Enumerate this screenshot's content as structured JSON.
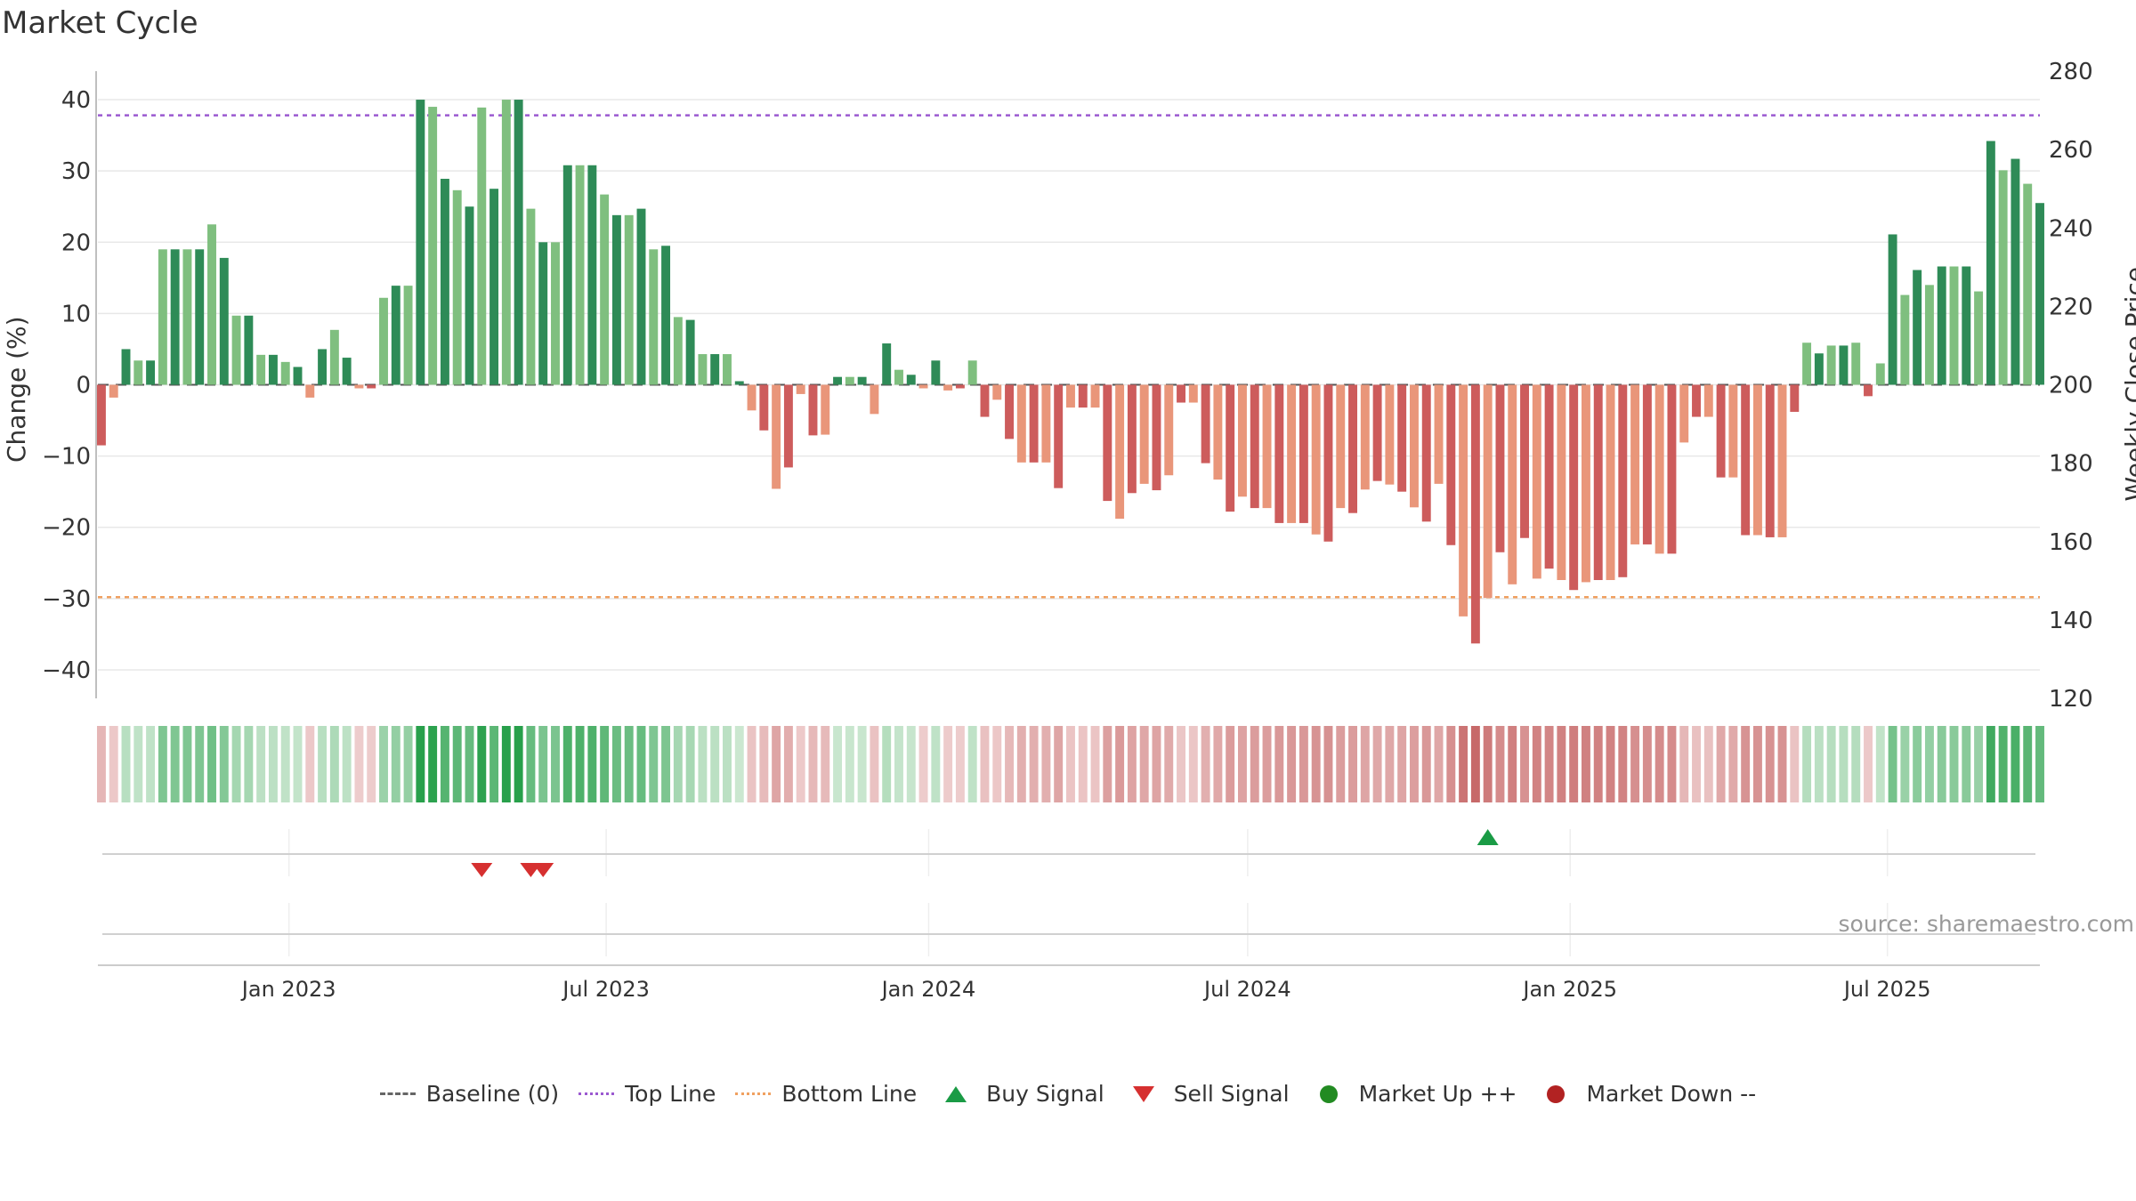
{
  "title": "Market Cycle",
  "source": "source: sharemaestro.com",
  "colors": {
    "up_dark": "#2e8b57",
    "up_light": "#7fbf7f",
    "down_dark": "#cd5c5c",
    "down_light": "#e9967a",
    "top_line": "#9b59d0",
    "bottom_line": "#f0a060",
    "buy": "#1a9b45",
    "sell": "#d63030",
    "market_up": "#228b22",
    "market_down": "#b22222"
  },
  "legend": [
    {
      "key": "baseline",
      "label": "Baseline (0)"
    },
    {
      "key": "top",
      "label": "Top Line"
    },
    {
      "key": "bottom",
      "label": "Bottom Line"
    },
    {
      "key": "buy",
      "label": "Buy Signal"
    },
    {
      "key": "sell",
      "label": "Sell Signal"
    },
    {
      "key": "mup",
      "label": "Market Up ++"
    },
    {
      "key": "mdown",
      "label": "Market Down --"
    }
  ],
  "chart_data": {
    "type": "bar",
    "title": "Market Cycle",
    "ylabel_left": "Change (%)",
    "ylabel_right": "Weekly Close Price",
    "ylim_left": [
      -44,
      44
    ],
    "yticks_left": [
      40,
      30,
      20,
      10,
      0,
      -10,
      -20,
      -30,
      -40
    ],
    "ylim_right": [
      120,
      280
    ],
    "yticks_right": [
      280,
      260,
      240,
      220,
      200,
      180,
      160,
      140,
      120
    ],
    "top_line": 37.8,
    "bottom_line": -29.8,
    "baseline": 0,
    "x_range": [
      "2022-09-14",
      "2025-09-26"
    ],
    "x_ticks": [
      {
        "date": "2023-01-01",
        "label": "Jan 2023"
      },
      {
        "date": "2023-07-01",
        "label": "Jul 2023"
      },
      {
        "date": "2024-01-01",
        "label": "Jan 2024"
      },
      {
        "date": "2024-07-01",
        "label": "Jul 2024"
      },
      {
        "date": "2025-01-01",
        "label": "Jan 2025"
      },
      {
        "date": "2025-07-01",
        "label": "Jul 2025"
      }
    ],
    "start_date": "2022-09-16",
    "week_interval_days": 7,
    "values": [
      -8.5,
      -1.8,
      5,
      3.4,
      3.4,
      19,
      19,
      19,
      19,
      22.5,
      17.8,
      9.7,
      9.7,
      4.2,
      4.2,
      3.2,
      2.5,
      -1.8,
      5,
      7.7,
      3.8,
      -0.5,
      -0.5,
      12.2,
      13.9,
      13.9,
      40,
      39,
      28.9,
      27.3,
      25,
      38.9,
      27.5,
      40,
      40,
      24.7,
      20,
      20,
      30.8,
      30.8,
      30.8,
      26.7,
      23.8,
      23.8,
      24.7,
      19,
      19.5,
      9.5,
      9.1,
      4.3,
      4.3,
      4.3,
      0.5,
      -3.6,
      -6.4,
      -14.6,
      -11.6,
      -1.3,
      -7.1,
      -7,
      1.1,
      1.1,
      1.1,
      -4.1,
      5.8,
      2.1,
      1.4,
      -0.5,
      3.4,
      -0.8,
      -0.5,
      3.4,
      -4.5,
      -2.1,
      -7.6,
      -10.9,
      -10.9,
      -10.9,
      -14.5,
      -3.2,
      -3.2,
      -3.2,
      -16.3,
      -18.8,
      -15.2,
      -13.9,
      -14.8,
      -12.7,
      -2.5,
      -2.5,
      -11,
      -13.3,
      -17.8,
      -15.7,
      -17.3,
      -17.3,
      -19.4,
      -19.4,
      -19.4,
      -21,
      -22,
      -17.3,
      -18,
      -14.7,
      -13.5,
      -14,
      -15,
      -17.2,
      -19.2,
      -13.9,
      -22.5,
      -32.5,
      -36.3,
      -29.9,
      -23.5,
      -28,
      -21.5,
      -27.2,
      -25.8,
      -27.4,
      -28.8,
      -27.7,
      -27.4,
      -27.4,
      -27,
      -22.4,
      -22.4,
      -23.7,
      -23.7,
      -8.1,
      -4.5,
      -4.5,
      -13,
      -13,
      -21.1,
      -21.1,
      -21.4,
      -21.4,
      -3.8,
      5.9,
      4.4,
      5.5,
      5.5,
      5.9,
      -1.6,
      3,
      21.1,
      12.6,
      16.1,
      14,
      16.6,
      16.6,
      16.6,
      13.1,
      34.2,
      30.1,
      31.7,
      28.2,
      25.5
    ],
    "buy_signals": [
      "2024-11-15"
    ],
    "sell_signals": [
      "2023-04-21",
      "2023-05-19",
      "2023-05-26"
    ],
    "market_up": [],
    "market_down": []
  }
}
